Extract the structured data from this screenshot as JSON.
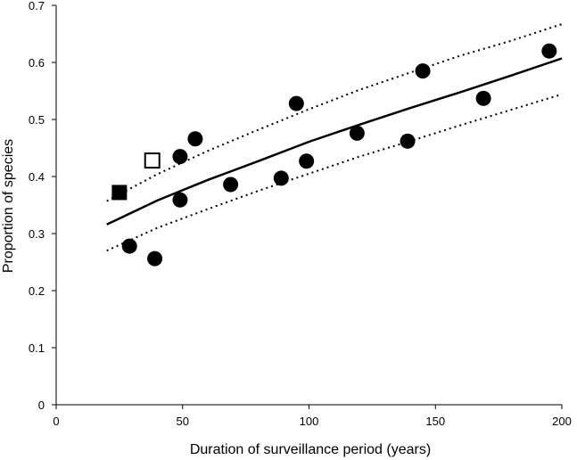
{
  "chart_data": {
    "type": "scatter",
    "title": "",
    "xlabel": "Duration of surveillance period (years)",
    "ylabel": "Proportion of species",
    "xlim": [
      0,
      200
    ],
    "ylim": [
      0,
      0.7
    ],
    "xticks": [
      "0",
      "50",
      "100",
      "150",
      "200"
    ],
    "yticks": [
      "0",
      "0.1",
      "0.2",
      "0.3",
      "0.4",
      "0.5",
      "0.6",
      "0.7"
    ],
    "grid": false,
    "legend": "none",
    "points": [
      {
        "x": 29,
        "y": 0.278,
        "marker": "circle"
      },
      {
        "x": 39,
        "y": 0.256,
        "marker": "circle"
      },
      {
        "x": 49,
        "y": 0.435,
        "marker": "circle"
      },
      {
        "x": 49,
        "y": 0.359,
        "marker": "circle"
      },
      {
        "x": 55,
        "y": 0.466,
        "marker": "circle"
      },
      {
        "x": 69,
        "y": 0.386,
        "marker": "circle"
      },
      {
        "x": 89,
        "y": 0.397,
        "marker": "circle"
      },
      {
        "x": 95,
        "y": 0.528,
        "marker": "circle"
      },
      {
        "x": 99,
        "y": 0.427,
        "marker": "circle"
      },
      {
        "x": 119,
        "y": 0.476,
        "marker": "circle"
      },
      {
        "x": 139,
        "y": 0.462,
        "marker": "circle"
      },
      {
        "x": 145,
        "y": 0.585,
        "marker": "circle"
      },
      {
        "x": 169,
        "y": 0.537,
        "marker": "circle"
      },
      {
        "x": 195,
        "y": 0.62,
        "marker": "circle"
      },
      {
        "x": 25,
        "y": 0.372,
        "marker": "square-filled"
      },
      {
        "x": 38,
        "y": 0.428,
        "marker": "square-open"
      }
    ],
    "series": [
      {
        "style": "solid",
        "x": [
          20,
          40,
          60,
          80,
          100,
          120,
          140,
          160,
          180,
          200
        ],
        "y": [
          0.316,
          0.358,
          0.394,
          0.427,
          0.461,
          0.491,
          0.52,
          0.548,
          0.577,
          0.607
        ]
      },
      {
        "style": "dotted",
        "x": [
          20,
          40,
          60,
          80,
          100,
          120,
          140,
          160,
          180,
          200
        ],
        "y": [
          0.357,
          0.404,
          0.445,
          0.482,
          0.518,
          0.552,
          0.582,
          0.612,
          0.638,
          0.667
        ]
      },
      {
        "style": "dotted",
        "x": [
          20,
          40,
          60,
          80,
          100,
          120,
          140,
          160,
          180,
          200
        ],
        "y": [
          0.27,
          0.31,
          0.343,
          0.375,
          0.405,
          0.435,
          0.462,
          0.49,
          0.517,
          0.544
        ]
      }
    ],
    "colors": {
      "marker": "#000000",
      "line": "#000000",
      "axis": "#000000",
      "open_fill": "#ffffff"
    }
  }
}
